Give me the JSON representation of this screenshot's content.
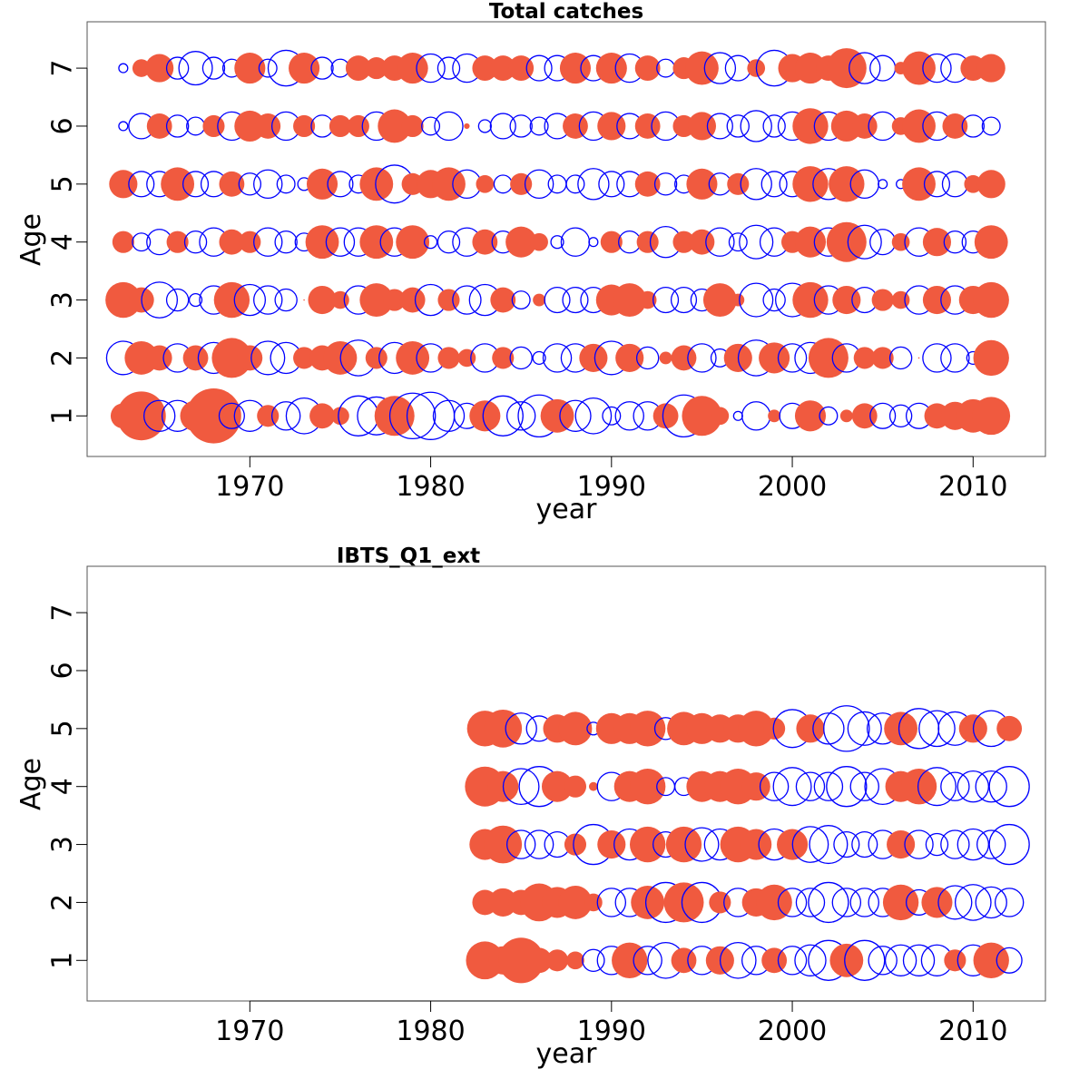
{
  "colors": {
    "positive": "#f05a3f",
    "negative": "#0000ff",
    "frame": "#555555"
  },
  "chart_data": [
    {
      "type": "scatter",
      "subtype": "bubble",
      "title": "Total catches",
      "xlabel": "year",
      "ylabel": "Age",
      "xlim": [
        1961,
        2014
      ],
      "ylim": [
        0.3,
        7.8
      ],
      "x_ticks": [
        1970,
        1980,
        1990,
        2000,
        2010
      ],
      "y_ticks": [
        1,
        2,
        3,
        4,
        5,
        6,
        7
      ],
      "grid": false,
      "legend": "none",
      "years": [
        1963,
        1964,
        1965,
        1966,
        1967,
        1968,
        1969,
        1970,
        1971,
        1972,
        1973,
        1974,
        1975,
        1976,
        1977,
        1978,
        1979,
        1980,
        1981,
        1982,
        1983,
        1984,
        1985,
        1986,
        1987,
        1988,
        1989,
        1990,
        1991,
        1992,
        1993,
        1994,
        1995,
        1996,
        1997,
        1998,
        1999,
        2000,
        2001,
        2002,
        2003,
        2004,
        2005,
        2006,
        2007,
        2008,
        2009,
        2010,
        2011
      ],
      "ages": [
        1,
        2,
        3,
        4,
        5,
        6,
        7
      ],
      "residuals": [
        [
          0.4,
          1.5,
          -0.6,
          -0.6,
          0.6,
          1.9,
          -0.4,
          -0.6,
          0.3,
          -0.5,
          -0.8,
          0.4,
          0.2,
          -1.0,
          -0.9,
          1.0,
          -1.3,
          -1.4,
          -0.6,
          -0.4,
          0.6,
          -1.0,
          -0.5,
          -1.1,
          0.7,
          -0.6,
          -0.8,
          -0.2,
          -0.5,
          -0.5,
          0.4,
          -1.1,
          1.0,
          0.2,
          -0.05,
          -0.5,
          0.1,
          -0.4,
          0.6,
          -0.2,
          0.1,
          0.4,
          -0.4,
          -0.3,
          -0.4,
          0.4,
          0.5,
          0.7,
          0.9
        ],
        [
          -0.7,
          0.7,
          0.4,
          -0.5,
          0.4,
          -0.6,
          1.0,
          0.4,
          -0.7,
          -0.6,
          0.3,
          0.4,
          0.7,
          -0.8,
          0.3,
          -0.6,
          0.7,
          -0.5,
          0.3,
          0.2,
          -0.5,
          0.3,
          -0.3,
          -0.1,
          -0.5,
          -0.5,
          0.5,
          -0.7,
          0.5,
          -0.3,
          0.1,
          0.4,
          -0.5,
          -0.2,
          0.5,
          -0.8,
          0.6,
          -0.5,
          -0.6,
          1.0,
          -0.5,
          0.3,
          0.3,
          -0.3,
          0.0,
          -0.5,
          -0.5,
          -0.1,
          0.8
        ],
        [
          0.8,
          0.4,
          -0.8,
          -0.3,
          -0.1,
          -0.5,
          0.8,
          -0.6,
          -0.5,
          -0.3,
          0.0,
          0.5,
          0.2,
          -0.5,
          0.7,
          0.3,
          0.4,
          -0.6,
          0.3,
          -0.5,
          -0.6,
          0.4,
          -0.2,
          0.1,
          -0.4,
          -0.4,
          -0.4,
          0.6,
          0.7,
          0.2,
          -0.4,
          -0.4,
          -0.3,
          0.7,
          0.1,
          -0.7,
          -0.3,
          -0.7,
          0.8,
          -0.5,
          0.5,
          -0.4,
          0.3,
          0.2,
          -0.5,
          0.5,
          -0.5,
          0.5,
          0.8
        ],
        [
          0.3,
          -0.2,
          -0.4,
          0.3,
          -0.3,
          -0.5,
          0.4,
          0.3,
          -0.5,
          -0.3,
          -0.2,
          0.7,
          -0.5,
          -0.5,
          0.7,
          -0.5,
          0.7,
          -0.1,
          -0.3,
          -0.5,
          0.4,
          -0.3,
          0.6,
          0.2,
          -0.1,
          -0.5,
          -0.05,
          0.3,
          -0.3,
          0.3,
          -0.6,
          0.3,
          0.4,
          -0.5,
          -0.2,
          -0.7,
          -0.5,
          0.3,
          0.6,
          -0.5,
          1.0,
          -0.7,
          -0.4,
          0.2,
          -0.5,
          0.5,
          -0.3,
          -0.3,
          0.7
        ],
        [
          0.5,
          -0.4,
          -0.4,
          0.7,
          -0.4,
          -0.4,
          0.4,
          -0.3,
          -0.5,
          -0.2,
          -0.1,
          0.6,
          -0.4,
          -0.2,
          0.7,
          -0.9,
          0.3,
          0.5,
          0.7,
          -0.5,
          0.2,
          -0.2,
          0.3,
          -0.5,
          -0.2,
          -0.2,
          -0.6,
          -0.4,
          -0.4,
          0.4,
          -0.3,
          -0.2,
          0.6,
          -0.3,
          0.3,
          -0.6,
          -0.4,
          -0.4,
          0.8,
          -0.6,
          0.8,
          -0.5,
          -0.05,
          -0.05,
          0.7,
          -0.4,
          -0.4,
          0.2,
          0.5
        ],
        [
          -0.05,
          -0.4,
          0.4,
          -0.3,
          -0.2,
          0.3,
          -0.5,
          0.6,
          0.4,
          -0.5,
          0.3,
          -0.3,
          0.3,
          0.3,
          -0.5,
          0.7,
          0.3,
          -0.2,
          -0.5,
          0.02,
          -0.1,
          -0.4,
          -0.3,
          -0.2,
          -0.4,
          0.4,
          -0.5,
          0.5,
          -0.4,
          0.4,
          -0.5,
          0.3,
          0.5,
          -0.4,
          -0.3,
          -0.6,
          -0.3,
          -0.5,
          0.8,
          -0.5,
          0.6,
          0.4,
          -0.5,
          0.2,
          0.7,
          -0.5,
          0.4,
          -0.3,
          -0.2
        ],
        [
          -0.05,
          0.2,
          0.5,
          -0.3,
          -0.7,
          -0.3,
          -0.2,
          0.6,
          -0.2,
          -0.8,
          0.6,
          -0.3,
          -0.2,
          0.4,
          0.3,
          0.4,
          0.6,
          -0.5,
          -0.3,
          -0.5,
          0.4,
          0.4,
          0.4,
          -0.4,
          -0.4,
          0.6,
          -0.4,
          0.6,
          -0.5,
          0.4,
          -0.2,
          0.3,
          0.7,
          -0.6,
          -0.4,
          0.2,
          -0.8,
          0.5,
          0.6,
          0.4,
          1.0,
          -0.6,
          -0.4,
          0.1,
          0.7,
          -0.5,
          -0.5,
          0.4,
          0.5
        ]
      ]
    },
    {
      "type": "scatter",
      "subtype": "bubble",
      "title": "IBTS_Q1_ext",
      "xlabel": "year",
      "ylabel": "Age",
      "xlim": [
        1961,
        2014
      ],
      "ylim": [
        0.3,
        7.8
      ],
      "x_ticks": [
        1970,
        1980,
        1990,
        2000,
        2010
      ],
      "y_ticks": [
        1,
        2,
        3,
        4,
        5,
        6,
        7
      ],
      "grid": false,
      "legend": "none",
      "years": [
        1983,
        1984,
        1985,
        1986,
        1987,
        1988,
        1989,
        1990,
        1991,
        1992,
        1993,
        1994,
        1995,
        1996,
        1997,
        1998,
        1999,
        2000,
        2001,
        2002,
        2003,
        2004,
        2005,
        2006,
        2007,
        2008,
        2009,
        2010,
        2011,
        2012
      ],
      "ages": [
        1,
        2,
        3,
        4,
        5
      ],
      "residuals": [
        [
          0.9,
          0.5,
          1.3,
          0.4,
          0.3,
          0.2,
          -0.3,
          -0.5,
          0.8,
          -0.5,
          -0.8,
          0.4,
          -0.5,
          0.5,
          -0.8,
          -0.5,
          0.4,
          -0.5,
          -0.6,
          -1.0,
          0.7,
          -1.0,
          -0.5,
          -0.6,
          -0.6,
          -0.6,
          0.3,
          -0.6,
          0.8,
          -0.4
        ],
        [
          0.4,
          0.5,
          0.4,
          0.9,
          0.6,
          0.7,
          0.2,
          -0.5,
          -0.5,
          0.7,
          -1.0,
          1.0,
          -1.0,
          0.3,
          -0.5,
          0.5,
          0.8,
          -0.5,
          -0.5,
          -1.0,
          -0.5,
          -0.5,
          -0.5,
          0.8,
          -0.4,
          0.6,
          -0.7,
          -0.8,
          -0.6,
          -0.5
        ],
        [
          0.6,
          0.9,
          -0.5,
          -0.5,
          -0.4,
          0.3,
          -1.0,
          0.5,
          -0.6,
          0.8,
          -0.4,
          0.8,
          -0.7,
          -0.6,
          0.8,
          0.6,
          -0.6,
          0.6,
          -0.8,
          -0.9,
          -0.4,
          -0.4,
          -0.5,
          0.5,
          -0.5,
          -0.3,
          -0.5,
          -0.6,
          -0.5,
          -1.0
        ],
        [
          1.0,
          0.6,
          -0.8,
          -1.0,
          0.6,
          0.3,
          0.05,
          -0.5,
          0.6,
          0.8,
          -0.2,
          -0.2,
          0.6,
          0.6,
          0.8,
          0.5,
          -0.5,
          -0.9,
          -0.5,
          -0.5,
          -1.0,
          -0.5,
          -0.8,
          0.6,
          0.8,
          -0.9,
          -0.5,
          -0.6,
          -0.6,
          -1.0
        ],
        [
          0.8,
          0.9,
          -0.6,
          -0.4,
          0.5,
          0.7,
          -0.1,
          0.6,
          0.6,
          0.8,
          -0.3,
          0.7,
          0.6,
          0.5,
          0.5,
          0.8,
          0.3,
          -0.9,
          0.5,
          -0.6,
          -1.3,
          -0.7,
          -0.6,
          0.7,
          -1.0,
          -0.8,
          -0.7,
          0.5,
          -0.8,
          0.4
        ]
      ]
    }
  ]
}
